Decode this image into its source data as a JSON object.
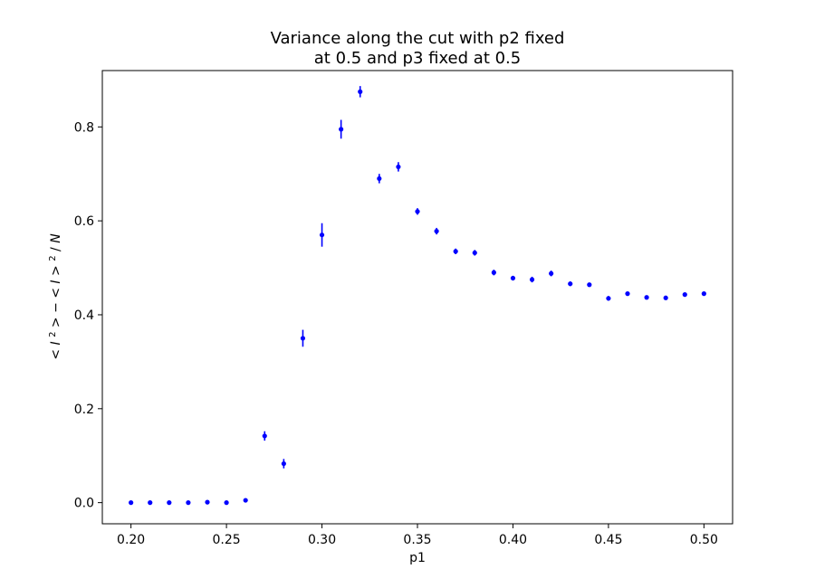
{
  "chart_data": {
    "type": "scatter",
    "title_lines": [
      "Variance along the cut with p2 fixed",
      "at 0.5 and p3 fixed at 0.5"
    ],
    "xlabel": "p1",
    "ylabel_parts": [
      "<",
      "I",
      "2",
      "> − <",
      "I",
      ">",
      "2",
      "/",
      "N"
    ],
    "xlim": [
      0.185,
      0.515
    ],
    "ylim": [
      -0.045,
      0.92
    ],
    "xticks": [
      0.2,
      0.25,
      0.3,
      0.35,
      0.4,
      0.45,
      0.5
    ],
    "xtick_labels": [
      "0.20",
      "0.25",
      "0.30",
      "0.35",
      "0.40",
      "0.45",
      "0.50"
    ],
    "yticks": [
      0.0,
      0.2,
      0.4,
      0.6,
      0.8
    ],
    "ytick_labels": [
      "0.0",
      "0.2",
      "0.4",
      "0.6",
      "0.8"
    ],
    "grid": false,
    "marker_color": "#0000ff",
    "series": [
      {
        "x": [
          0.2,
          0.21,
          0.22,
          0.23,
          0.24,
          0.25,
          0.26,
          0.27,
          0.28,
          0.29,
          0.3,
          0.31,
          0.32,
          0.33,
          0.34,
          0.35,
          0.36,
          0.37,
          0.38,
          0.39,
          0.4,
          0.41,
          0.42,
          0.43,
          0.44,
          0.45,
          0.46,
          0.47,
          0.48,
          0.49,
          0.5
        ],
        "y": [
          0.0,
          0.0,
          0.0,
          0.0,
          0.001,
          0.0,
          0.005,
          0.142,
          0.083,
          0.35,
          0.57,
          0.795,
          0.875,
          0.69,
          0.715,
          0.62,
          0.578,
          0.535,
          0.532,
          0.49,
          0.478,
          0.475,
          0.488,
          0.466,
          0.464,
          0.435,
          0.445,
          0.437,
          0.436,
          0.443,
          0.445
        ],
        "err": [
          0.0,
          0.0,
          0.0,
          0.0,
          0.002,
          0.0,
          0.003,
          0.01,
          0.01,
          0.018,
          0.025,
          0.02,
          0.012,
          0.01,
          0.01,
          0.007,
          0.007,
          0.006,
          0.006,
          0.006,
          0.005,
          0.006,
          0.006,
          0.005,
          0.004,
          0.005,
          0.004,
          0.004,
          0.004,
          0.004,
          0.004
        ]
      }
    ]
  }
}
